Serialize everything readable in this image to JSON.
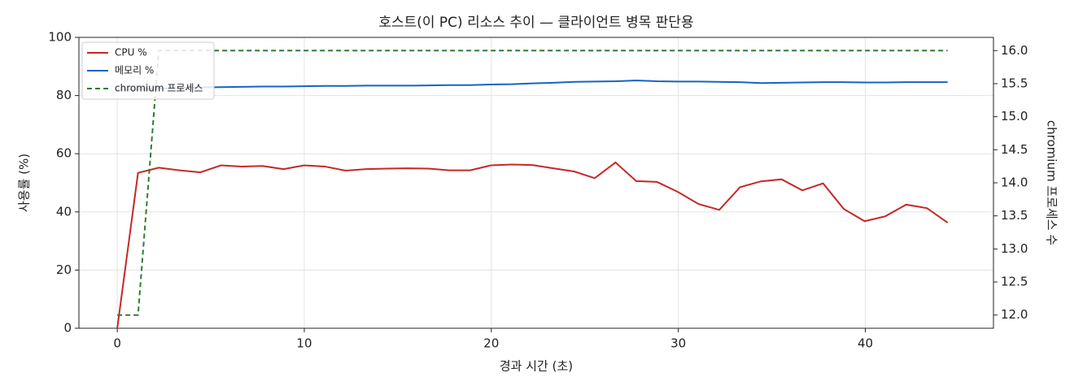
{
  "chart_data": {
    "type": "line",
    "title": "호스트(이 PC) 리소스 추이 — 클라이언트 병목 판단용",
    "x_label": "경과 시간 (초)",
    "y_label": "사용률 (%)",
    "y2_label": "chromium 프로세스 수",
    "x": [
      0,
      1.11,
      2.22,
      3.33,
      4.44,
      5.55,
      6.66,
      7.77,
      8.88,
      9.99,
      11.1,
      12.21,
      13.32,
      14.43,
      15.54,
      16.65,
      17.76,
      18.87,
      19.98,
      21.09,
      22.2,
      23.31,
      24.42,
      25.53,
      26.64,
      27.75,
      28.86,
      29.97,
      31.08,
      32.19,
      33.3,
      34.41,
      35.52,
      36.63,
      37.74,
      38.85,
      39.96,
      41.07,
      42.18,
      43.29,
      44.4
    ],
    "series": [
      {
        "name": "CPU %",
        "color": "#c62828",
        "axis": "y",
        "dashed": false,
        "values": [
          0,
          53.4,
          55.2,
          54.3,
          53.6,
          56.0,
          55.6,
          55.8,
          54.7,
          56.0,
          55.6,
          54.2,
          54.7,
          54.9,
          55.0,
          54.9,
          54.3,
          54.3,
          56.0,
          56.3,
          56.1,
          55.0,
          53.9,
          51.6,
          57.0,
          50.6,
          50.3,
          46.9,
          42.7,
          40.7,
          48.5,
          50.5,
          51.2,
          47.4,
          49.8,
          41.0,
          36.8,
          38.5,
          42.5,
          41.3,
          36.3
        ]
      },
      {
        "name": "메모리 %",
        "color": "#1565c0",
        "axis": "y",
        "dashed": false,
        "values": [
          82.0,
          82.2,
          82.4,
          82.6,
          82.8,
          82.9,
          83.0,
          83.1,
          83.1,
          83.2,
          83.3,
          83.3,
          83.4,
          83.4,
          83.4,
          83.5,
          83.6,
          83.6,
          83.8,
          83.9,
          84.2,
          84.4,
          84.7,
          84.8,
          84.9,
          85.2,
          84.9,
          84.8,
          84.8,
          84.7,
          84.6,
          84.3,
          84.4,
          84.5,
          84.6,
          84.6,
          84.5,
          84.5,
          84.6,
          84.6,
          84.6
        ]
      },
      {
        "name": "chromium 프로세스",
        "color": "#2e7d32",
        "axis": "y2",
        "dashed": true,
        "values": [
          12,
          12,
          16,
          16,
          16,
          16,
          16,
          16,
          16,
          16,
          16,
          16,
          16,
          16,
          16,
          16,
          16,
          16,
          16,
          16,
          16,
          16,
          16,
          16,
          16,
          16,
          16,
          16,
          16,
          16,
          16,
          16,
          16,
          16,
          16,
          16,
          16,
          16,
          16,
          16,
          16
        ]
      }
    ],
    "xlim": [
      -2.05,
      46.85
    ],
    "xticks": [
      0,
      10,
      20,
      30,
      40
    ],
    "ylim": [
      0,
      100
    ],
    "yticks": [
      0,
      20,
      40,
      60,
      80,
      100
    ],
    "y2lim": [
      11.8,
      16.2
    ],
    "y2ticks": [
      {
        "value": 12,
        "label": "12.0"
      },
      {
        "value": 12.5,
        "label": "12.5"
      },
      {
        "value": 13,
        "label": "13.0"
      },
      {
        "value": 13.5,
        "label": "13.5"
      },
      {
        "value": 14,
        "label": "14.0"
      },
      {
        "value": 14.5,
        "label": "14.5"
      },
      {
        "value": 15,
        "label": "15.0"
      },
      {
        "value": 15.5,
        "label": "15.5"
      },
      {
        "value": 16,
        "label": "16.0"
      }
    ],
    "grid": true,
    "legend": "upper-left"
  }
}
